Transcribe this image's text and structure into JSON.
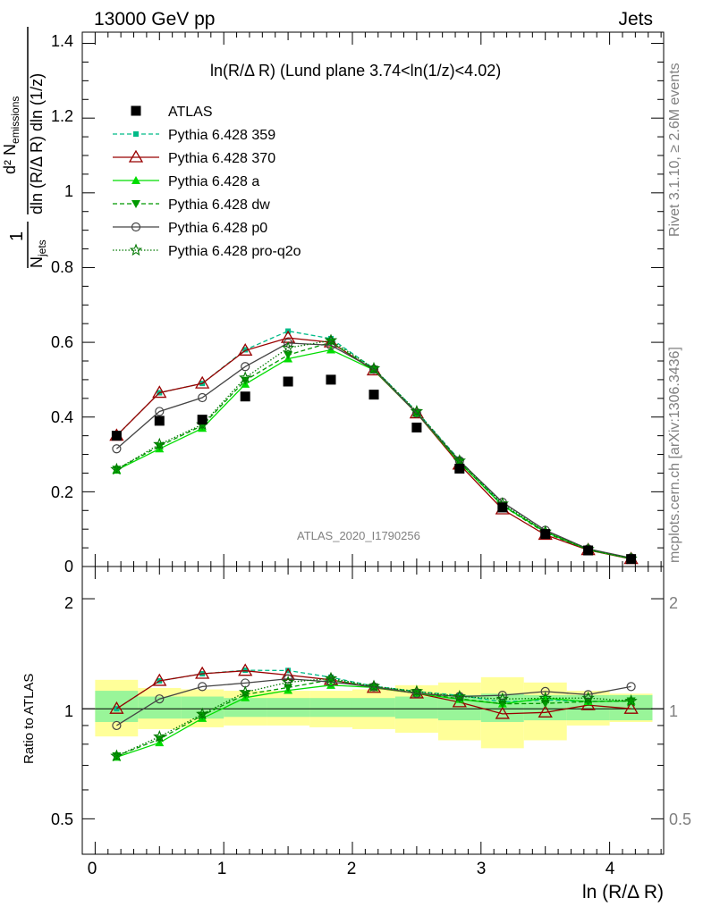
{
  "header": {
    "left": "13000 GeV pp",
    "right": "Jets"
  },
  "side": {
    "rivet": "Rivet 3.1.10, ≥ 2.6M events",
    "mcplots": "mcplots.cern.ch [arXiv:1306.3436]"
  },
  "main_plot": {
    "title": "ln(R/Δ R) (Lund plane 3.74<ln(1/z)<4.02)",
    "ylabel_num": "d² N",
    "ylabel_num_sub": "emissions",
    "ylabel_den": "dln (R/Δ R) dln (1/z)",
    "ylabel_prefix_num": "1",
    "ylabel_prefix_den": "N",
    "ylabel_prefix_den_sub": "jets",
    "watermark": "ATLAS_2020_I1790256",
    "yticks": [
      "0",
      "0.2",
      "0.4",
      "0.6",
      "0.8",
      "1",
      "1.2",
      "1.4"
    ]
  },
  "ratio_plot": {
    "ylabel": "Ratio to ATLAS",
    "yticks": [
      "0.5",
      "1",
      "2"
    ],
    "xlabel": "ln (R/Δ R)",
    "xticks": [
      "0",
      "1",
      "2",
      "3",
      "4"
    ]
  },
  "legend": [
    {
      "label": "ATLAS",
      "color": "#000000",
      "marker": "square",
      "line": "none"
    },
    {
      "label": "Pythia 6.428 359",
      "color": "#00bb88",
      "marker": "small-square",
      "line": "dashed"
    },
    {
      "label": "Pythia 6.428 370",
      "color": "#990000",
      "marker": "open-triangle",
      "line": "solid"
    },
    {
      "label": "Pythia 6.428 a",
      "color": "#00dd00",
      "marker": "triangle",
      "line": "solid"
    },
    {
      "label": "Pythia 6.428 dw",
      "color": "#009900",
      "marker": "inverted-triangle",
      "line": "dashed"
    },
    {
      "label": "Pythia 6.428 p0",
      "color": "#444444",
      "marker": "open-circle",
      "line": "solid"
    },
    {
      "label": "Pythia 6.428 pro-q2o",
      "color": "#007700",
      "marker": "open-star",
      "line": "dotted"
    }
  ],
  "chart_data": {
    "type": "line",
    "xlabel": "ln (R/Δ R)",
    "ylabel": "(1/N_jets) d²N_emissions / dln(R/ΔR) dln(1/z)",
    "xlim": [
      -0.1,
      4.42
    ],
    "ylim": [
      0,
      1.43
    ],
    "ratio_ylim_log": [
      0.4,
      2.45
    ],
    "x": [
      0.167,
      0.5,
      0.833,
      1.167,
      1.5,
      1.833,
      2.167,
      2.5,
      2.833,
      3.167,
      3.5,
      3.833,
      4.167
    ],
    "bin_edges": [
      0,
      0.333,
      0.667,
      1.0,
      1.333,
      1.667,
      2.0,
      2.333,
      2.667,
      3.0,
      3.333,
      3.667,
      4.0,
      4.333
    ],
    "data": {
      "name": "ATLAS",
      "values": [
        0.35,
        0.39,
        0.393,
        0.455,
        0.495,
        0.5,
        0.46,
        0.372,
        0.262,
        0.158,
        0.087,
        0.043,
        0.02
      ]
    },
    "series": [
      {
        "name": "Pythia 6.428 359",
        "values": [
          0.35,
          0.465,
          0.49,
          0.58,
          0.63,
          0.61,
          0.53,
          0.415,
          0.285,
          0.165,
          0.092,
          0.045,
          0.021
        ]
      },
      {
        "name": "Pythia 6.428 370",
        "values": [
          0.35,
          0.465,
          0.49,
          0.578,
          0.612,
          0.6,
          0.525,
          0.41,
          0.273,
          0.153,
          0.085,
          0.044,
          0.02
        ]
      },
      {
        "name": "Pythia 6.428 a",
        "values": [
          0.258,
          0.315,
          0.37,
          0.488,
          0.556,
          0.58,
          0.526,
          0.41,
          0.278,
          0.163,
          0.093,
          0.045,
          0.021
        ]
      },
      {
        "name": "Pythia 6.428 dw",
        "values": [
          0.26,
          0.322,
          0.377,
          0.498,
          0.566,
          0.6,
          0.528,
          0.412,
          0.279,
          0.163,
          0.09,
          0.045,
          0.021
        ]
      },
      {
        "name": "Pythia 6.428 p0",
        "values": [
          0.315,
          0.415,
          0.452,
          0.535,
          0.598,
          0.592,
          0.528,
          0.41,
          0.283,
          0.172,
          0.097,
          0.047,
          0.023
        ]
      },
      {
        "name": "Pythia 6.428 pro-q2o",
        "values": [
          0.26,
          0.327,
          0.38,
          0.505,
          0.585,
          0.605,
          0.53,
          0.415,
          0.283,
          0.168,
          0.093,
          0.046,
          0.021
        ]
      }
    ],
    "ratio_band_inner": [
      [
        0.92,
        1.12
      ],
      [
        0.94,
        1.08
      ],
      [
        0.94,
        1.08
      ],
      [
        0.95,
        1.07
      ],
      [
        0.95,
        1.07
      ],
      [
        0.95,
        1.07
      ],
      [
        0.95,
        1.07
      ],
      [
        0.94,
        1.08
      ],
      [
        0.93,
        1.09
      ],
      [
        0.92,
        1.1
      ],
      [
        0.93,
        1.09
      ],
      [
        0.93,
        1.09
      ],
      [
        0.93,
        1.09
      ]
    ],
    "ratio_band_outer": [
      [
        0.84,
        1.2
      ],
      [
        0.88,
        1.14
      ],
      [
        0.89,
        1.13
      ],
      [
        0.9,
        1.12
      ],
      [
        0.9,
        1.12
      ],
      [
        0.89,
        1.12
      ],
      [
        0.88,
        1.13
      ],
      [
        0.86,
        1.16
      ],
      [
        0.82,
        1.18
      ],
      [
        0.78,
        1.22
      ],
      [
        0.82,
        1.18
      ],
      [
        0.9,
        1.12
      ],
      [
        0.92,
        1.1
      ]
    ],
    "grid": false,
    "legend_position": "top-left"
  }
}
